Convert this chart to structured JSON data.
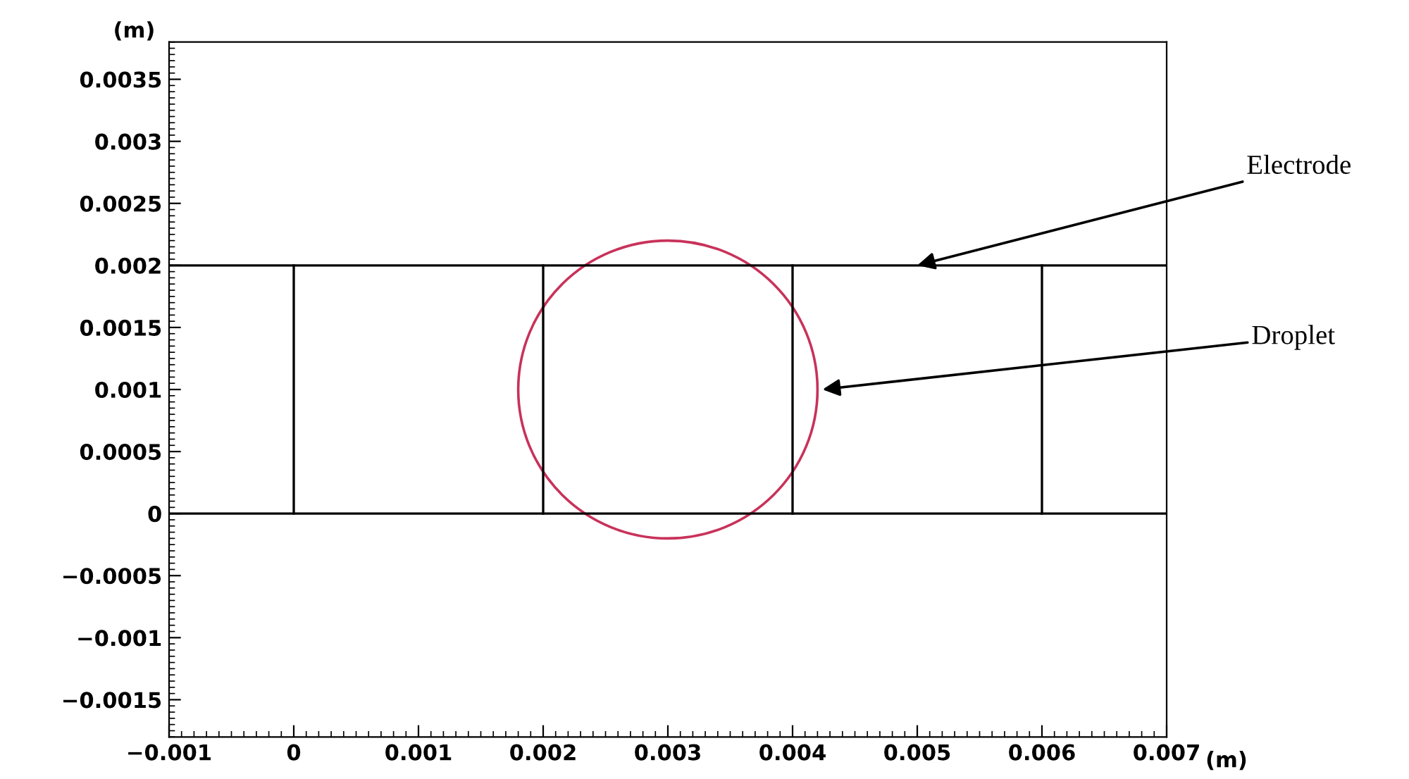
{
  "chart_data": {
    "type": "line",
    "xlabel": "(m)",
    "ylabel": "(m)",
    "xlim": [
      -0.001,
      0.007
    ],
    "ylim": [
      -0.0018,
      0.0038
    ],
    "xticks": [
      -0.001,
      0,
      0.001,
      0.002,
      0.003,
      0.004,
      0.005,
      0.006,
      0.007
    ],
    "yticks": [
      -0.0015,
      -0.001,
      -0.0005,
      0,
      0.0005,
      0.001,
      0.0015,
      0.002,
      0.0025,
      0.003,
      0.0035
    ],
    "grid": false,
    "legend": false,
    "marker": "none",
    "line_style": "solid",
    "series": [
      {
        "color": "#000000",
        "x": [
          -0.001,
          0.007
        ],
        "values": [
          0.002,
          0.002
        ]
      },
      {
        "color": "#000000",
        "x": [
          -0.001,
          0.007
        ],
        "values": [
          0,
          0
        ]
      },
      {
        "color": "#000000",
        "x": [
          0,
          0
        ],
        "values": [
          0,
          0.002
        ]
      },
      {
        "color": "#000000",
        "x": [
          0.002,
          0.002
        ],
        "values": [
          0,
          0.002
        ]
      },
      {
        "color": "#000000",
        "x": [
          0.004,
          0.004
        ],
        "values": [
          0,
          0.002
        ]
      },
      {
        "color": "#000000",
        "x": [
          0.006,
          0.006
        ],
        "values": [
          0,
          0.002
        ]
      }
    ],
    "annotations": [
      {
        "text": "Electrode",
        "x": 0.005,
        "y": 0.002
      },
      "Droplet"
    ]
  }
}
